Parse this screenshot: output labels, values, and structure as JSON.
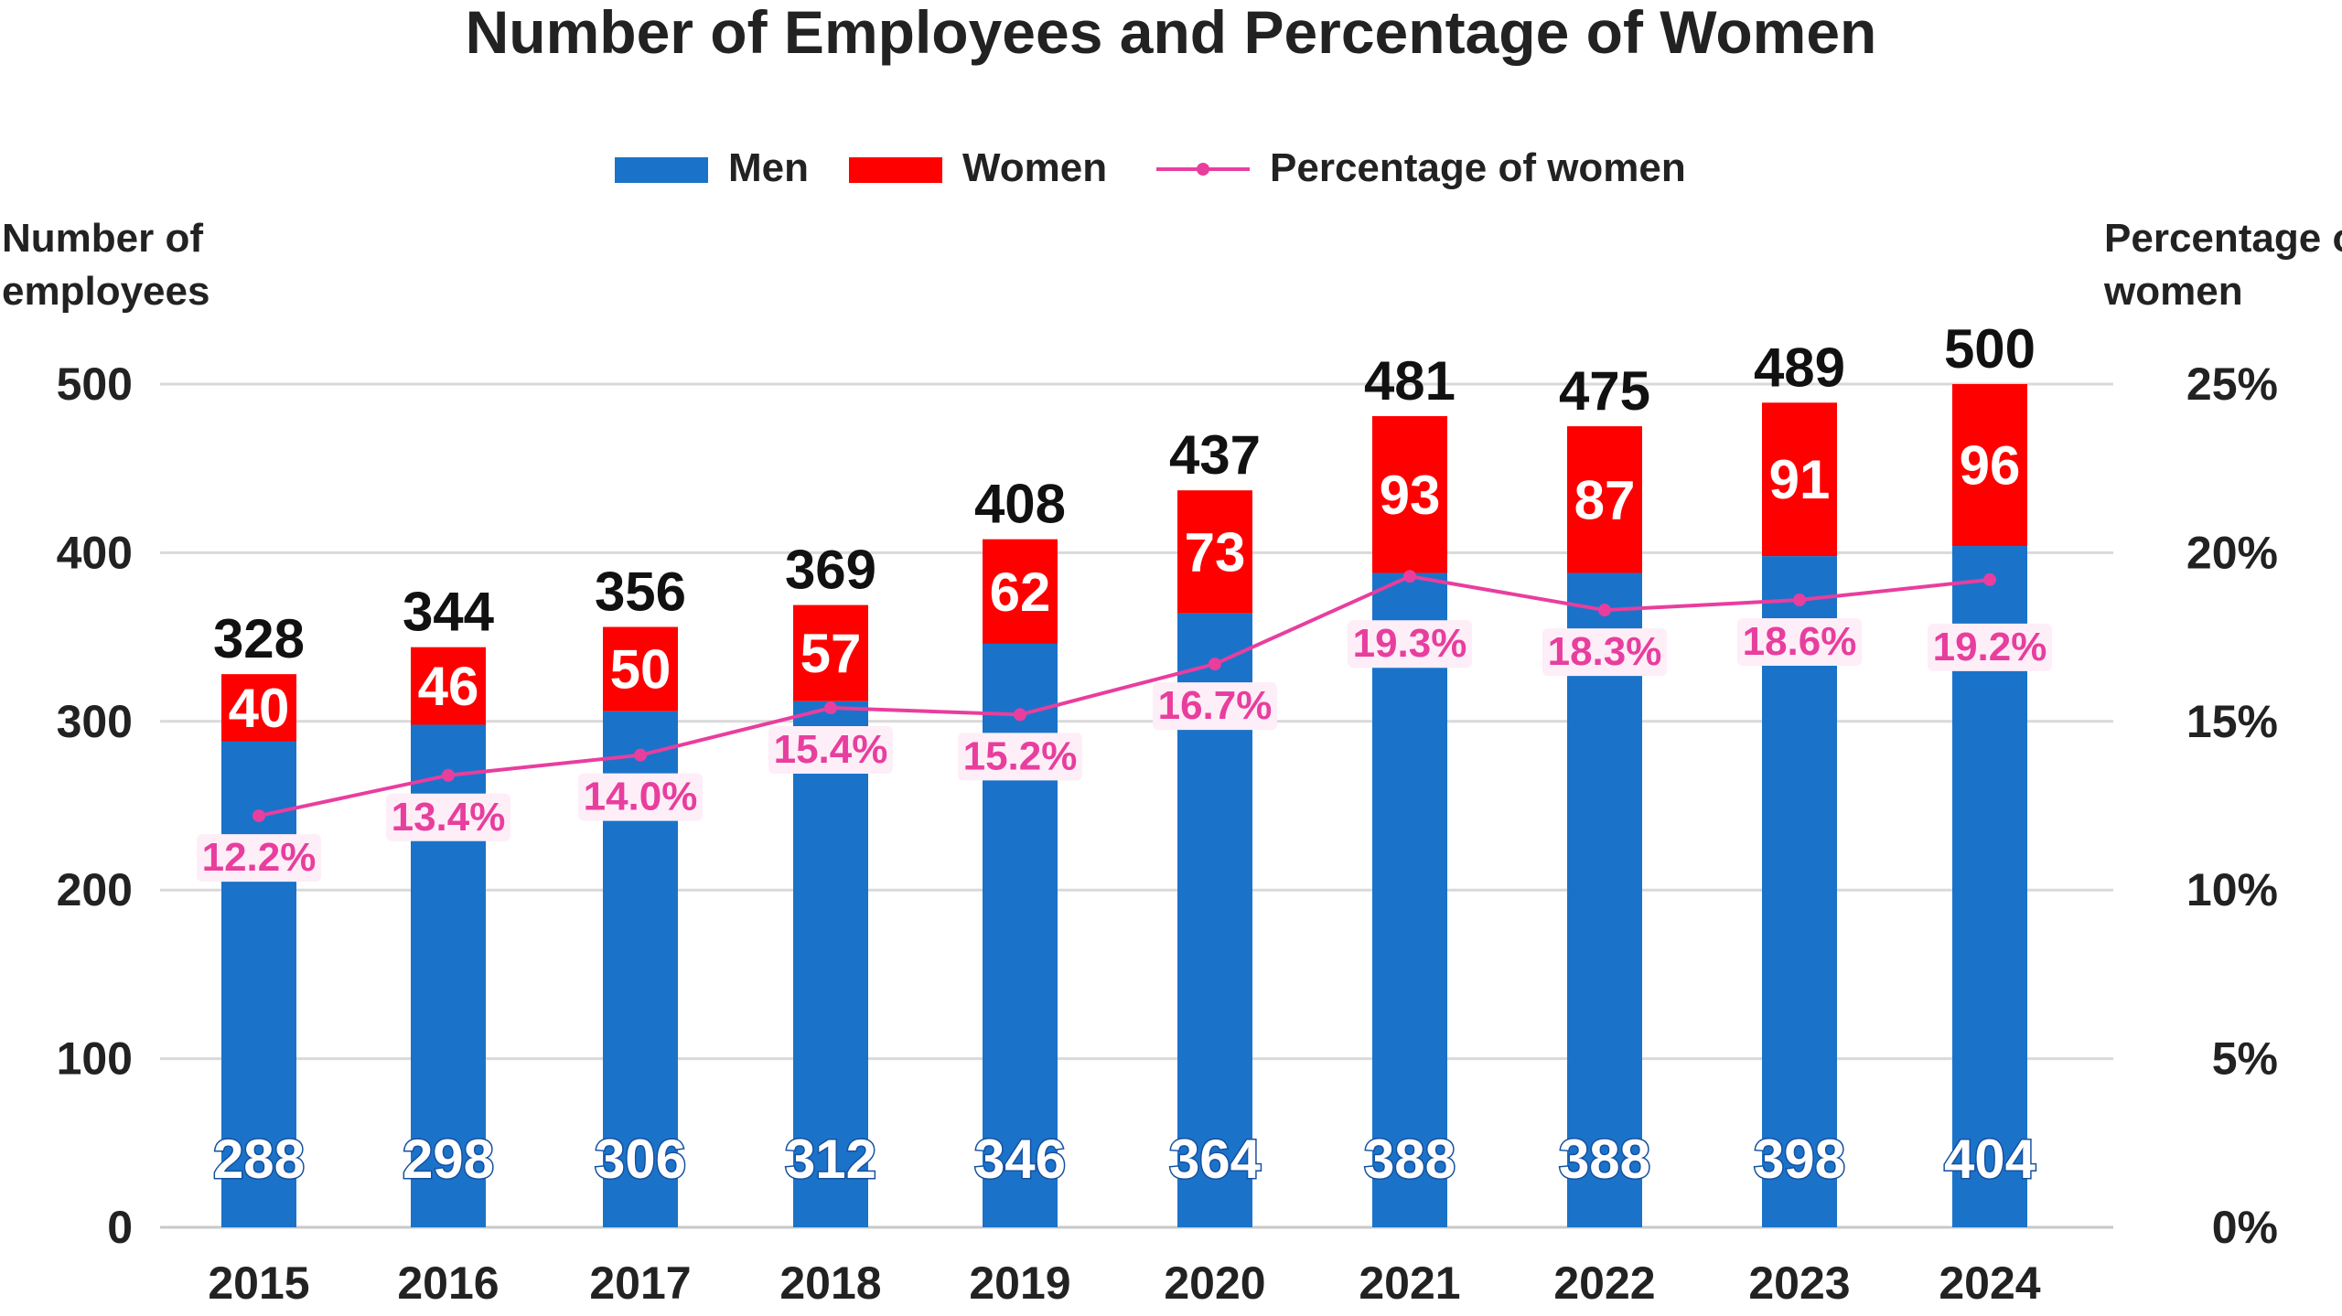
{
  "chart_data": {
    "type": "bar",
    "stacked": true,
    "title": "Number of Employees and Percentage of Women",
    "ylabel_left": "Number of employees",
    "ylabel_right": "Percentage of women",
    "categories": [
      "2015",
      "2016",
      "2017",
      "2018",
      "2019",
      "2020",
      "2021",
      "2022",
      "2023",
      "2024"
    ],
    "series": [
      {
        "name": "Men",
        "type": "bar",
        "color": "#1a73c9",
        "values": [
          288,
          298,
          306,
          312,
          346,
          364,
          388,
          388,
          398,
          404
        ]
      },
      {
        "name": "Women",
        "type": "bar",
        "color": "#ff0000",
        "values": [
          40,
          46,
          50,
          57,
          62,
          73,
          93,
          87,
          91,
          96
        ]
      },
      {
        "name": "Percentage of women",
        "type": "line",
        "axis": "right",
        "color": "#e83e9e",
        "values": [
          12.2,
          13.4,
          14.0,
          15.4,
          15.2,
          16.7,
          19.3,
          18.3,
          18.6,
          19.2
        ]
      }
    ],
    "totals": [
      328,
      344,
      356,
      369,
      408,
      437,
      481,
      475,
      489,
      500
    ],
    "percent_labels": [
      "12.2%",
      "13.4%",
      "14.0%",
      "15.4%",
      "15.2%",
      "16.7%",
      "19.3%",
      "18.3%",
      "18.6%",
      "19.2%"
    ],
    "ylim_left": [
      0,
      500
    ],
    "yticks_left": [
      0,
      100,
      200,
      300,
      400,
      500
    ],
    "ylim_right": [
      0,
      25
    ],
    "yticks_right_labels": [
      "0%",
      "5%",
      "10%",
      "15%",
      "20%",
      "25%"
    ],
    "grid": true,
    "legend_position": "top-center"
  }
}
